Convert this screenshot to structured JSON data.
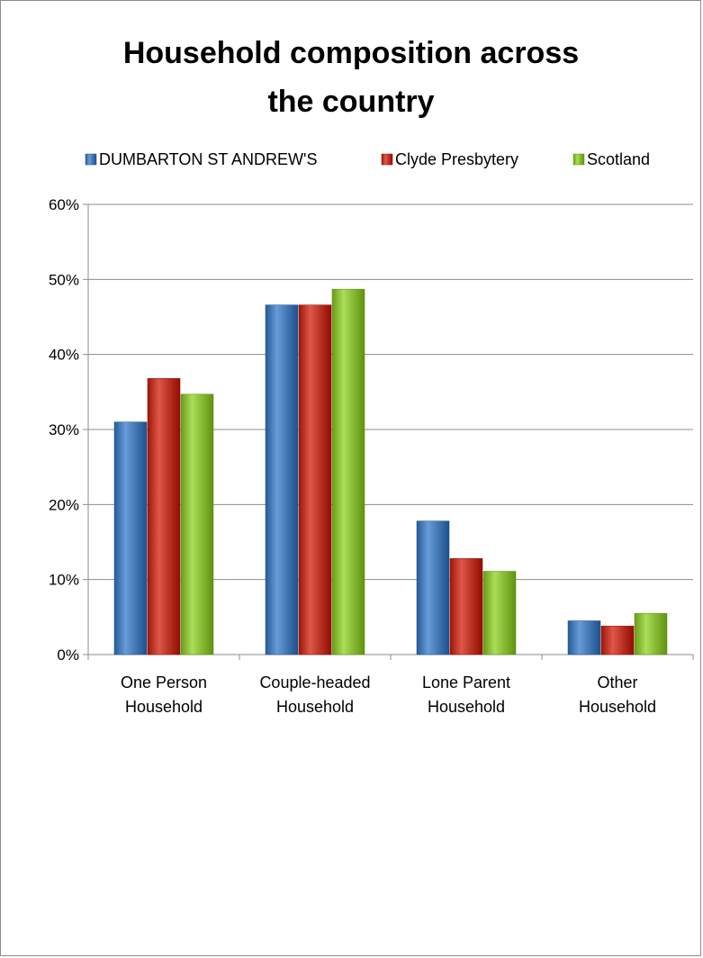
{
  "chart_data": {
    "type": "bar",
    "title_lines": [
      "Household composition across",
      "the country"
    ],
    "categories": [
      [
        "One Person",
        "Household"
      ],
      [
        "Couple-headed",
        "Household"
      ],
      [
        "Lone Parent",
        "Household"
      ],
      [
        "Other",
        "Household"
      ]
    ],
    "series": [
      {
        "name": "DUMBARTON ST ANDREW'S",
        "color": "#4a7ebb",
        "values": [
          31.0,
          46.6,
          17.8,
          4.5
        ]
      },
      {
        "name": "Clyde Presbytery",
        "color": "#c0392b",
        "values": [
          36.8,
          46.6,
          12.8,
          3.8
        ]
      },
      {
        "name": "Scotland",
        "color": "#8cbf3a",
        "values": [
          34.7,
          48.7,
          11.1,
          5.5
        ]
      }
    ],
    "y_ticks": [
      "0%",
      "10%",
      "20%",
      "30%",
      "40%",
      "50%",
      "60%"
    ],
    "ylim": [
      0,
      60
    ],
    "legend_position": "top",
    "grid": true
  }
}
